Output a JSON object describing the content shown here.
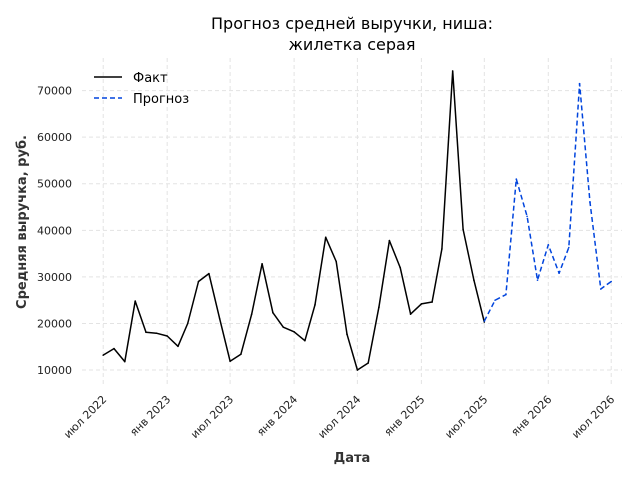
{
  "chart_data": {
    "type": "line",
    "title": [
      "Прогноз средней выручки, ниша:",
      "жилетка серая"
    ],
    "xlabel": "Дата",
    "ylabel": "Средняя выручка, руб.",
    "ylim": [
      7000,
      77000
    ],
    "yticks": [
      10000,
      20000,
      30000,
      40000,
      50000,
      60000,
      70000
    ],
    "xlim": [
      "2022-05-01",
      "2026-08-01"
    ],
    "xticks": [
      {
        "date": "2022-07-01",
        "label": "июл 2022"
      },
      {
        "date": "2023-01-01",
        "label": "янв 2023"
      },
      {
        "date": "2023-07-01",
        "label": "июл 2023"
      },
      {
        "date": "2024-01-01",
        "label": "янв 2024"
      },
      {
        "date": "2024-07-01",
        "label": "июл 2024"
      },
      {
        "date": "2025-01-01",
        "label": "янв 2025"
      },
      {
        "date": "2025-07-01",
        "label": "июл 2025"
      },
      {
        "date": "2026-01-01",
        "label": "янв 2026"
      },
      {
        "date": "2026-07-01",
        "label": "июл 2026"
      }
    ],
    "grid": true,
    "legend_position": "top-left",
    "series": [
      {
        "name": "Факт",
        "color": "#000000",
        "style": "solid",
        "points": [
          [
            "2022-07-01",
            13200
          ],
          [
            "2022-08-01",
            14600
          ],
          [
            "2022-09-01",
            11800
          ],
          [
            "2022-10-01",
            24800
          ],
          [
            "2022-11-01",
            18100
          ],
          [
            "2022-12-01",
            17900
          ],
          [
            "2023-01-01",
            17300
          ],
          [
            "2023-02-01",
            15100
          ],
          [
            "2023-03-01",
            20000
          ],
          [
            "2023-04-01",
            29000
          ],
          [
            "2023-05-01",
            30700
          ],
          [
            "2023-06-01",
            21000
          ],
          [
            "2023-07-01",
            11900
          ],
          [
            "2023-08-01",
            13400
          ],
          [
            "2023-09-01",
            22000
          ],
          [
            "2023-10-01",
            32800
          ],
          [
            "2023-11-01",
            22300
          ],
          [
            "2023-12-01",
            19200
          ],
          [
            "2024-01-01",
            18200
          ],
          [
            "2024-02-01",
            16300
          ],
          [
            "2024-03-01",
            24000
          ],
          [
            "2024-04-01",
            38500
          ],
          [
            "2024-05-01",
            33300
          ],
          [
            "2024-06-01",
            17700
          ],
          [
            "2024-07-01",
            10000
          ],
          [
            "2024-08-01",
            11500
          ],
          [
            "2024-09-01",
            23500
          ],
          [
            "2024-10-01",
            37800
          ],
          [
            "2024-11-01",
            32000
          ],
          [
            "2024-12-01",
            22000
          ],
          [
            "2025-01-01",
            24200
          ],
          [
            "2025-02-01",
            24600
          ],
          [
            "2025-03-01",
            36000
          ],
          [
            "2025-04-01",
            74200
          ],
          [
            "2025-05-01",
            40200
          ],
          [
            "2025-06-01",
            29300
          ],
          [
            "2025-07-01",
            20300
          ]
        ]
      },
      {
        "name": "Прогноз",
        "color": "#0044dd",
        "style": "dashed",
        "points": [
          [
            "2025-07-01",
            20500
          ],
          [
            "2025-08-01",
            25000
          ],
          [
            "2025-09-01",
            26200
          ],
          [
            "2025-10-01",
            51000
          ],
          [
            "2025-11-01",
            43000
          ],
          [
            "2025-12-01",
            29300
          ],
          [
            "2026-01-01",
            36900
          ],
          [
            "2026-02-01",
            30800
          ],
          [
            "2026-03-01",
            36300
          ],
          [
            "2026-04-01",
            71500
          ],
          [
            "2026-05-01",
            46000
          ],
          [
            "2026-06-01",
            27400
          ],
          [
            "2026-07-01",
            29000
          ]
        ]
      }
    ]
  }
}
